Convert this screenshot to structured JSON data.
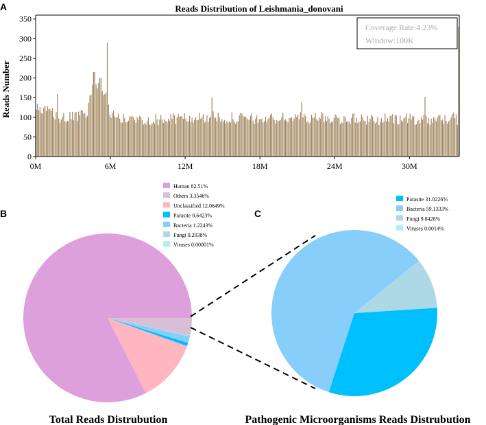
{
  "panel_labels": {
    "a": "A",
    "b": "B",
    "c": "C"
  },
  "chart_data": [
    {
      "type": "bar",
      "title": "Reads Distribution of Leishmania_donovani",
      "xlabel": "",
      "ylabel": "Reads Number",
      "ylim": [
        0,
        360
      ],
      "yticks": [
        0,
        50,
        100,
        150,
        200,
        250,
        300,
        350
      ],
      "xlim": [
        0,
        34
      ],
      "xtick_values": [
        0,
        6,
        12,
        18,
        24,
        30
      ],
      "xtick_labels": [
        "0M",
        "6M",
        "12M",
        "18M",
        "24M",
        "30M"
      ],
      "bin_width": "100K",
      "bar_color": "#a0845c",
      "annotation": {
        "coverage": "Coverage Rate:4.23%",
        "window": "Window:100K"
      },
      "profile": [
        [
          0,
          120,
          15
        ],
        [
          1.5,
          110,
          15
        ],
        [
          2.0,
          95,
          15
        ],
        [
          3.0,
          100,
          15
        ],
        [
          4.0,
          105,
          15
        ],
        [
          4.5,
          160,
          25
        ],
        [
          5.0,
          185,
          20
        ],
        [
          5.5,
          170,
          20
        ],
        [
          6.0,
          110,
          15
        ],
        [
          7.0,
          95,
          15
        ],
        [
          10.0,
          95,
          15
        ],
        [
          14.0,
          100,
          15
        ],
        [
          18.0,
          95,
          15
        ],
        [
          22.0,
          100,
          15
        ],
        [
          26.0,
          95,
          15
        ],
        [
          30.0,
          95,
          15
        ],
        [
          33.9,
          95,
          15
        ]
      ],
      "spikes": [
        [
          5.8,
          290
        ],
        [
          4.7,
          215
        ],
        [
          5.2,
          200
        ],
        [
          14.2,
          150
        ],
        [
          21.4,
          138
        ],
        [
          31.3,
          152
        ],
        [
          33.95,
          330
        ],
        [
          1.8,
          160
        ],
        [
          33.5,
          112
        ]
      ]
    },
    {
      "type": "pie",
      "title": "Total Reads Distrubution",
      "start_angle_deg": 0,
      "direction": "counterclockwise",
      "slices": [
        {
          "label": "Human 82.51%",
          "value": 82.51,
          "color": "#dda0dd"
        },
        {
          "label": "Others 3.3546%",
          "value": 3.3546,
          "color": "#d8bfd8"
        },
        {
          "label": "Unclassified 12.0649%",
          "value": 12.0649,
          "color": "#ffb6c1"
        },
        {
          "label": "Parasite 0.6423%",
          "value": 0.6423,
          "color": "#00bfff"
        },
        {
          "label": "Bacteria 1.2243%",
          "value": 1.2243,
          "color": "#87cefa"
        },
        {
          "label": "Fungi 0.2038%",
          "value": 0.2038,
          "color": "#add8e6"
        },
        {
          "label": "Viruses 0.00001%",
          "value": 1e-05,
          "color": "#afeeee"
        }
      ],
      "draw_order": [
        "Human 82.51%",
        "Unclassified 12.0649%",
        "Parasite 0.6423%",
        "Bacteria 1.2243%",
        "Fungi 0.2038%",
        "Others 3.3546%",
        "Viruses 0.00001%"
      ]
    },
    {
      "type": "pie",
      "title": "Pathogenic Microorganisms Reads Distrubution",
      "start_angle_deg": -108,
      "direction": "counterclockwise",
      "slices": [
        {
          "label": "Parasite 31.0226%",
          "value": 31.0226,
          "color": "#00bfff"
        },
        {
          "label": "Bacteria 59.1333%",
          "value": 59.1333,
          "color": "#87cefa"
        },
        {
          "label": "Fungi 9.8428%",
          "value": 9.8428,
          "color": "#add8e6"
        },
        {
          "label": "Viruses 0.0014%",
          "value": 0.0014,
          "color": "#afeeee"
        }
      ],
      "draw_order": [
        "Parasite 31.0226%",
        "Fungi 9.8428%",
        "Bacteria 59.1333%",
        "Viruses 0.0014%"
      ]
    }
  ]
}
